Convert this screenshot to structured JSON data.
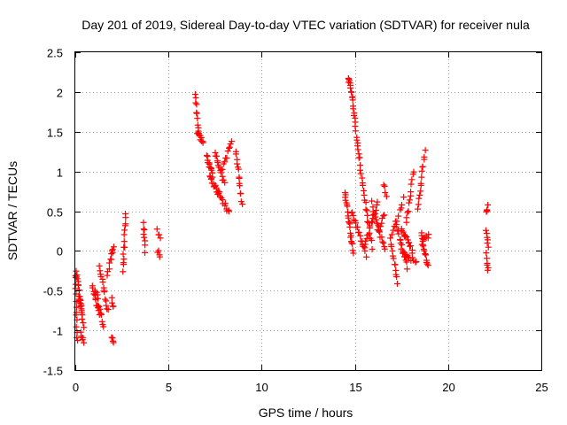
{
  "chart_data": {
    "type": "scatter",
    "title": "Day 201 of 2019, Sidereal Day-to-day VTEC variation (SDTVAR) for receiver nula",
    "xlabel": "GPS time / hours",
    "ylabel": "SDTVAR / TECUs",
    "xlim": [
      0,
      25
    ],
    "ylim": [
      -1.5,
      2.5
    ],
    "x_ticks": [
      0,
      5,
      10,
      15,
      20,
      25
    ],
    "y_ticks": [
      -1.5,
      -1,
      -0.5,
      0,
      0.5,
      1,
      1.5,
      2,
      2.5
    ],
    "x_tick_labels": [
      "0",
      "5",
      "10",
      "15",
      "20",
      "25"
    ],
    "y_tick_labels": [
      "-1.5",
      "-1",
      "-0.5",
      "0",
      "0.5",
      "1",
      "1.5",
      "2",
      "2.5"
    ],
    "grid": true,
    "marker": "plus",
    "color": "#ff0000",
    "series": [
      {
        "name": "SDTVAR",
        "segments": [
          {
            "x0": 0.0,
            "x1": 0.1,
            "y0": -0.3,
            "y1": -1.15,
            "n": 14
          },
          {
            "x0": 0.05,
            "x1": 0.35,
            "y0": -0.25,
            "y1": -0.75,
            "n": 16
          },
          {
            "x0": 0.2,
            "x1": 0.45,
            "y0": -0.55,
            "y1": -0.95,
            "n": 10
          },
          {
            "x0": 0.3,
            "x1": 0.45,
            "y0": -1.05,
            "y1": -1.15,
            "n": 5
          },
          {
            "x0": 0.9,
            "x1": 1.3,
            "y0": -0.45,
            "y1": -0.8,
            "n": 12
          },
          {
            "x0": 1.1,
            "x1": 1.5,
            "y0": -0.5,
            "y1": -0.95,
            "n": 12
          },
          {
            "x0": 1.3,
            "x1": 1.75,
            "y0": -0.2,
            "y1": -0.75,
            "n": 14
          },
          {
            "x0": 1.7,
            "x1": 2.0,
            "y0": -0.3,
            "y1": -0.05,
            "n": 7
          },
          {
            "x0": 1.95,
            "x1": 2.05,
            "y0": -0.05,
            "y1": 0.05,
            "n": 4
          },
          {
            "x0": 1.95,
            "x1": 2.05,
            "y0": -0.6,
            "y1": -0.7,
            "n": 4
          },
          {
            "x0": 1.95,
            "x1": 2.05,
            "y0": -1.08,
            "y1": -1.15,
            "n": 4
          },
          {
            "x0": 2.55,
            "x1": 2.7,
            "y0": -0.25,
            "y1": 0.45,
            "n": 14
          },
          {
            "x0": 3.65,
            "x1": 3.75,
            "y0": 0.35,
            "y1": 0.0,
            "n": 8
          },
          {
            "x0": 4.4,
            "x1": 4.55,
            "y0": 0.25,
            "y1": 0.15,
            "n": 4
          },
          {
            "x0": 4.4,
            "x1": 4.55,
            "y0": 0.0,
            "y1": -0.05,
            "n": 4
          },
          {
            "x0": 6.45,
            "x1": 6.6,
            "y0": 1.98,
            "y1": 1.5,
            "n": 10
          },
          {
            "x0": 6.55,
            "x1": 6.85,
            "y0": 1.5,
            "y1": 1.35,
            "n": 10
          },
          {
            "x0": 7.05,
            "x1": 7.35,
            "y0": 1.2,
            "y1": 0.95,
            "n": 12
          },
          {
            "x0": 7.2,
            "x1": 7.7,
            "y0": 0.95,
            "y1": 0.7,
            "n": 14
          },
          {
            "x0": 7.5,
            "x1": 8.0,
            "y0": 1.25,
            "y1": 0.85,
            "n": 14
          },
          {
            "x0": 7.7,
            "x1": 8.25,
            "y0": 0.75,
            "y1": 0.47,
            "n": 12
          },
          {
            "x0": 7.9,
            "x1": 8.4,
            "y0": 1.05,
            "y1": 1.38,
            "n": 10
          },
          {
            "x0": 8.6,
            "x1": 8.95,
            "y0": 1.25,
            "y1": 0.6,
            "n": 14
          },
          {
            "x0": 14.45,
            "x1": 14.9,
            "y0": 0.75,
            "y1": 0.0,
            "n": 22
          },
          {
            "x0": 14.65,
            "x1": 14.85,
            "y0": 2.2,
            "y1": 1.95,
            "n": 10
          },
          {
            "x0": 14.85,
            "x1": 15.2,
            "y0": 1.95,
            "y1": 1.2,
            "n": 16
          },
          {
            "x0": 15.2,
            "x1": 15.9,
            "y0": 1.2,
            "y1": 0.05,
            "n": 22
          },
          {
            "x0": 14.8,
            "x1": 15.6,
            "y0": 0.5,
            "y1": -0.05,
            "n": 18
          },
          {
            "x0": 15.5,
            "x1": 16.2,
            "y0": 0.05,
            "y1": 0.6,
            "n": 16
          },
          {
            "x0": 15.9,
            "x1": 16.6,
            "y0": 0.6,
            "y1": 0.0,
            "n": 16
          },
          {
            "x0": 16.2,
            "x1": 16.6,
            "y0": 0.25,
            "y1": 0.45,
            "n": 8
          },
          {
            "x0": 16.55,
            "x1": 16.7,
            "y0": 0.85,
            "y1": 0.7,
            "n": 4
          },
          {
            "x0": 16.9,
            "x1": 17.3,
            "y0": 0.15,
            "y1": -0.4,
            "n": 12
          },
          {
            "x0": 17.2,
            "x1": 17.8,
            "y0": 0.35,
            "y1": -0.2,
            "n": 16
          },
          {
            "x0": 17.5,
            "x1": 18.1,
            "y0": 0.3,
            "y1": 0.0,
            "n": 14
          },
          {
            "x0": 17.5,
            "x1": 18.3,
            "y0": 0.0,
            "y1": -0.15,
            "n": 12
          },
          {
            "x0": 17.0,
            "x1": 17.6,
            "y0": 0.2,
            "y1": 0.65,
            "n": 10
          },
          {
            "x0": 17.75,
            "x1": 18.15,
            "y0": 0.35,
            "y1": 1.0,
            "n": 12
          },
          {
            "x0": 18.4,
            "x1": 18.75,
            "y0": 0.55,
            "y1": 1.25,
            "n": 14
          },
          {
            "x0": 18.55,
            "x1": 18.9,
            "y0": 0.2,
            "y1": -0.2,
            "n": 14
          },
          {
            "x0": 18.6,
            "x1": 18.95,
            "y0": 0.1,
            "y1": 0.2,
            "n": 8
          },
          {
            "x0": 22.05,
            "x1": 22.15,
            "y0": 0.5,
            "y1": 0.55,
            "n": 4
          },
          {
            "x0": 22.05,
            "x1": 22.15,
            "y0": 0.25,
            "y1": 0.05,
            "n": 6
          },
          {
            "x0": 22.05,
            "x1": 22.15,
            "y0": -0.05,
            "y1": -0.25,
            "n": 6
          }
        ]
      }
    ]
  }
}
